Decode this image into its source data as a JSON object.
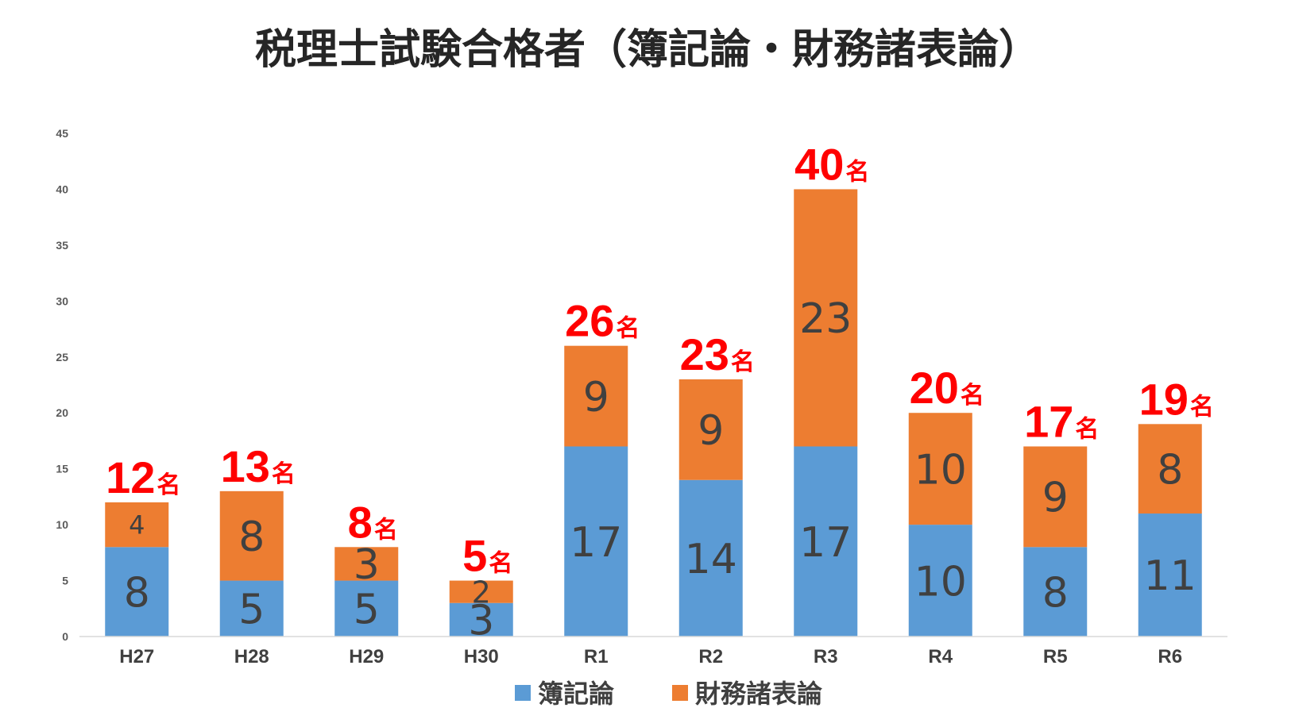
{
  "chart_data": {
    "type": "bar",
    "stacked": true,
    "title": "税理士試験合格者（簿記論・財務諸表論）",
    "categories": [
      "H27",
      "H28",
      "H29",
      "H30",
      "R1",
      "R2",
      "R3",
      "R4",
      "R5",
      "R6"
    ],
    "series": [
      {
        "name": "簿記論",
        "values": [
          8,
          5,
          5,
          3,
          17,
          14,
          17,
          10,
          8,
          11
        ],
        "color": "#5b9bd5"
      },
      {
        "name": "財務諸表論",
        "values": [
          4,
          8,
          3,
          2,
          9,
          9,
          23,
          10,
          9,
          8
        ],
        "color": "#ed7d31"
      }
    ],
    "totals": [
      12,
      13,
      8,
      5,
      26,
      23,
      40,
      20,
      17,
      19
    ],
    "total_unit": "名",
    "total_color": "#ff0000",
    "ylim": [
      0,
      45
    ],
    "yticks": [
      0,
      5,
      10,
      15,
      20,
      25,
      30,
      35,
      40,
      45
    ],
    "xlabel": "",
    "ylabel": "",
    "grid": false,
    "legend": "bottom"
  }
}
